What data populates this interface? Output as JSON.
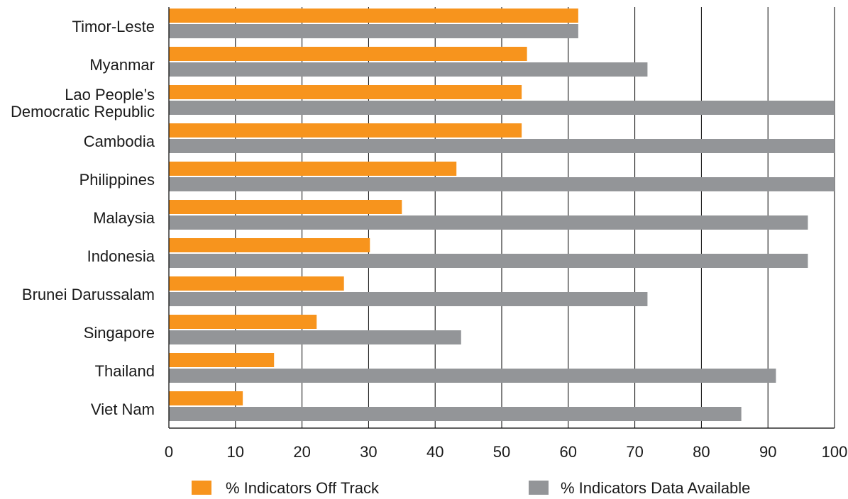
{
  "chart_data": {
    "type": "bar",
    "orientation": "horizontal",
    "categories": [
      [
        "Timor-Leste"
      ],
      [
        "Myanmar"
      ],
      [
        "Lao  People’s",
        "Democratic Republic"
      ],
      [
        "Cambodia"
      ],
      [
        "Philippines"
      ],
      [
        "Malaysia"
      ],
      [
        "Indonesia"
      ],
      [
        "Brunei Darussalam"
      ],
      [
        "Singapore"
      ],
      [
        "Thailand"
      ],
      [
        "Viet Nam"
      ]
    ],
    "series": [
      {
        "name": "% Indicators Off Track",
        "color": "#f7941d",
        "values": [
          61.5,
          53.8,
          53.0,
          53.0,
          43.2,
          35.0,
          30.2,
          26.3,
          22.2,
          15.8,
          11.1
        ]
      },
      {
        "name": "% Indicators Data Available",
        "color": "#939598",
        "values": [
          61.5,
          71.9,
          100,
          100,
          100,
          96.0,
          96.0,
          71.9,
          43.9,
          91.2,
          86.0
        ]
      }
    ],
    "xlim": [
      0,
      100
    ],
    "xticks": [
      0,
      10,
      20,
      30,
      40,
      50,
      60,
      70,
      80,
      90,
      100
    ],
    "grid": "vertical",
    "legend": "bottom"
  }
}
